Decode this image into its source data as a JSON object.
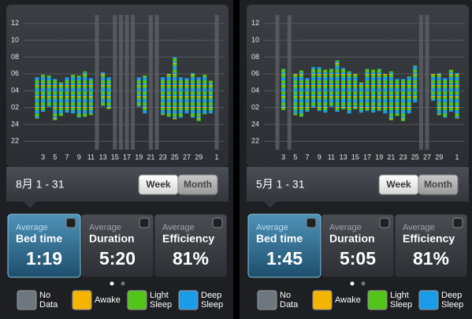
{
  "panels": [
    {
      "chart": {
        "type": "range_bar",
        "ylim": [
          21,
          37
        ],
        "yticks": [
          22,
          24,
          {
            "value": 26,
            "label": "02"
          },
          {
            "value": 28,
            "label": "04"
          },
          {
            "value": 30,
            "label": "06"
          },
          {
            "value": 32,
            "label": "08"
          },
          {
            "value": 34,
            "label": "10"
          },
          {
            "value": 36,
            "label": "12"
          }
        ],
        "categories": [
          null,
          "3",
          null,
          "5",
          null,
          "7",
          null,
          "9",
          null,
          "11",
          null,
          "13",
          null,
          "15",
          null,
          "17",
          null,
          "19",
          null,
          "21",
          null,
          "23",
          null,
          "25",
          null,
          "27",
          null,
          "29",
          null,
          null,
          "1"
        ],
        "values": [
          [
            29.6,
            24.7
          ],
          [
            29.9,
            25.5
          ],
          [
            29.8,
            26.1
          ],
          [
            29.4,
            24.5
          ],
          [
            29.0,
            25.0
          ],
          [
            29.6,
            25.4
          ],
          [
            29.9,
            25.3
          ],
          [
            29.8,
            24.8
          ],
          [
            30.3,
            24.9
          ],
          [
            29.5,
            25.1
          ],
          null,
          [
            30.2,
            26.2
          ],
          [
            29.6,
            25.8
          ],
          null,
          null,
          null,
          null,
          [
            29.6,
            26.1
          ],
          [
            29.8,
            25.3
          ],
          null,
          null,
          [
            29.6,
            25.1
          ],
          [
            30.0,
            24.9
          ],
          [
            32.0,
            24.6
          ],
          [
            29.6,
            24.8
          ],
          [
            29.5,
            25.3
          ],
          [
            30.1,
            24.8
          ],
          [
            29.6,
            24.4
          ],
          [
            29.9,
            25.2
          ],
          [
            29.2,
            25.3
          ],
          null
        ]
      },
      "date_range": "8月 1 - 31",
      "buttons": [
        "Week",
        "Month"
      ],
      "stats": [
        {
          "top": "Average",
          "label": "Bed time",
          "value": "1:19"
        },
        {
          "top": "Average",
          "label": "Duration",
          "value": "5:20"
        },
        {
          "top": "Average",
          "label": "Efficiency",
          "value": "81%"
        }
      ],
      "legend": [
        {
          "lines": [
            "No",
            "Data"
          ],
          "color": "#6e7780"
        },
        {
          "lines": [
            "Awake"
          ],
          "color": "#f4b400"
        },
        {
          "lines": [
            "Light",
            "Sleep"
          ],
          "color": "#52c41a"
        },
        {
          "lines": [
            "Deep",
            "Sleep"
          ],
          "color": "#1a9ce8"
        }
      ]
    },
    {
      "chart": {
        "type": "range_bar",
        "ylim": [
          21,
          37
        ],
        "yticks": [
          22,
          24,
          {
            "value": 26,
            "label": "02"
          },
          {
            "value": 28,
            "label": "04"
          },
          {
            "value": 30,
            "label": "06"
          },
          {
            "value": 32,
            "label": "08"
          },
          {
            "value": 34,
            "label": "10"
          },
          {
            "value": 36,
            "label": "12"
          }
        ],
        "categories": [
          null,
          "3",
          null,
          "5",
          null,
          "7",
          null,
          "9",
          null,
          "11",
          null,
          "13",
          null,
          "15",
          null,
          "17",
          null,
          "19",
          null,
          "21",
          null,
          "23",
          null,
          "25",
          null,
          "27",
          null,
          "29",
          null,
          null,
          "1"
        ],
        "values": [
          null,
          [
            30.6,
            25.7
          ],
          null,
          [
            30.0,
            25.1
          ],
          [
            30.4,
            24.9
          ],
          [
            29.5,
            25.5
          ],
          [
            30.8,
            26.0
          ],
          [
            30.8,
            25.6
          ],
          [
            30.5,
            25.4
          ],
          [
            30.6,
            26.1
          ],
          [
            31.6,
            25.5
          ],
          [
            30.7,
            25.8
          ],
          [
            30.3,
            25.3
          ],
          [
            30.0,
            25.8
          ],
          [
            29.0,
            25.4
          ],
          [
            30.6,
            25.6
          ],
          [
            30.5,
            25.4
          ],
          [
            30.6,
            25.6
          ],
          [
            30.0,
            25.3
          ],
          [
            30.3,
            24.5
          ],
          [
            29.4,
            25.0
          ],
          [
            29.4,
            24.4
          ],
          [
            29.7,
            25.3
          ],
          [
            31.0,
            26.6
          ],
          null,
          null,
          [
            30.0,
            26.8
          ],
          [
            30.1,
            25.1
          ],
          [
            29.5,
            24.8
          ],
          [
            30.5,
            25.5
          ],
          [
            30.1,
            24.7
          ]
        ]
      },
      "date_range": "5月 1 - 31",
      "buttons": [
        "Week",
        "Month"
      ],
      "stats": [
        {
          "top": "Average",
          "label": "Bed time",
          "value": "1:45"
        },
        {
          "top": "Average",
          "label": "Duration",
          "value": "5:05"
        },
        {
          "top": "Average",
          "label": "Efficiency",
          "value": "81%"
        }
      ],
      "legend": [
        {
          "lines": [
            "No",
            "Data"
          ],
          "color": "#6e7780"
        },
        {
          "lines": [
            "Awake"
          ],
          "color": "#f4b400"
        },
        {
          "lines": [
            "Light",
            "Sleep"
          ],
          "color": "#52c41a"
        },
        {
          "lines": [
            "Deep",
            "Sleep"
          ],
          "color": "#1a9ce8"
        }
      ]
    }
  ]
}
